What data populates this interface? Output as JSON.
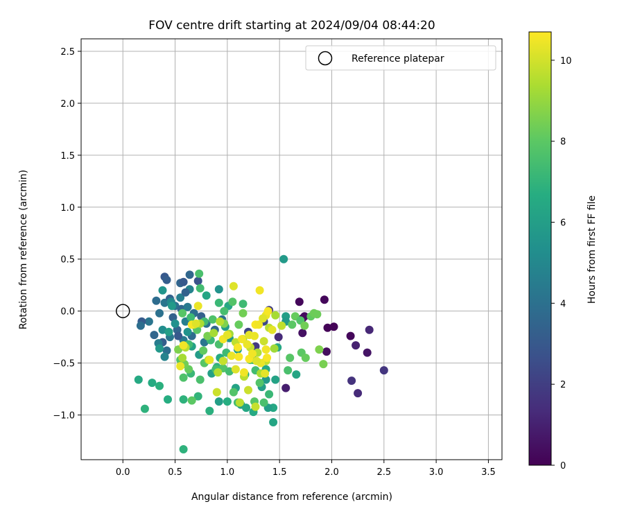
{
  "chart_data": {
    "type": "scatter",
    "title": "FOV centre drift starting at 2024/09/04 08:44:20",
    "xlabel": "Angular distance from reference (arcmin)",
    "ylabel": "Rotation from reference (arcmin)",
    "xlim": [
      -0.4,
      3.63
    ],
    "ylim": [
      -1.43,
      2.62
    ],
    "xticks": [
      "0.0",
      "0.5",
      "1.0",
      "1.5",
      "2.0",
      "2.5",
      "3.0",
      "3.5"
    ],
    "yticks": [
      "−1.0",
      "−0.5",
      "0.0",
      "0.5",
      "1.0",
      "1.5",
      "2.0",
      "2.5"
    ],
    "grid": true,
    "legend": {
      "position": "top-right",
      "entries": [
        "Reference platepar"
      ]
    },
    "reference_point": {
      "x": 0.0,
      "y": 0.0,
      "marker": "open-circle"
    },
    "colorbar": {
      "label": "Hours from first FF file",
      "range": [
        0,
        10.7
      ],
      "ticks": [
        "0",
        "2",
        "4",
        "6",
        "8",
        "10"
      ],
      "colormap": "viridis"
    },
    "series": [
      {
        "color_value": "hours",
        "points": [
          [
            1.69,
            0.09,
            0.2
          ],
          [
            1.72,
            -0.07,
            0.2
          ],
          [
            1.74,
            -0.05,
            0.3
          ],
          [
            1.72,
            -0.21,
            0.5
          ],
          [
            1.93,
            0.11,
            0.2
          ],
          [
            1.96,
            -0.16,
            0.1
          ],
          [
            2.02,
            -0.15,
            0.1
          ],
          [
            1.95,
            -0.39,
            0.4
          ],
          [
            2.18,
            -0.24,
            0.2
          ],
          [
            2.23,
            -0.33,
            1.0
          ],
          [
            2.34,
            -0.4,
            0.6
          ],
          [
            2.36,
            -0.18,
            1.2
          ],
          [
            2.19,
            -0.67,
            1.6
          ],
          [
            2.25,
            -0.79,
            1.3
          ],
          [
            2.5,
            -0.57,
            1.7
          ],
          [
            1.56,
            -0.74,
            0.9
          ],
          [
            1.49,
            -0.25,
            1.3
          ],
          [
            1.4,
            0.01,
            2.0
          ],
          [
            1.35,
            -0.1,
            2.4
          ],
          [
            1.2,
            -0.2,
            2.2
          ],
          [
            1.27,
            -0.34,
            1.8
          ],
          [
            0.4,
            0.33,
            3.0
          ],
          [
            0.42,
            0.3,
            3.2
          ],
          [
            0.55,
            0.27,
            3.5
          ],
          [
            0.58,
            0.28,
            3.0
          ],
          [
            0.64,
            0.35,
            3.6
          ],
          [
            0.72,
            0.29,
            2.8
          ],
          [
            0.32,
            0.1,
            3.8
          ],
          [
            0.4,
            0.08,
            4.2
          ],
          [
            0.45,
            0.12,
            3.4
          ],
          [
            0.5,
            0.05,
            4.0
          ],
          [
            0.56,
            0.02,
            3.6
          ],
          [
            0.62,
            0.04,
            4.4
          ],
          [
            0.68,
            -0.02,
            3.9
          ],
          [
            0.75,
            -0.05,
            3.3
          ],
          [
            0.8,
            -0.12,
            4.1
          ],
          [
            0.7,
            -0.15,
            3.7
          ],
          [
            0.6,
            -0.1,
            4.6
          ],
          [
            0.52,
            -0.18,
            3.5
          ],
          [
            0.45,
            -0.25,
            4.3
          ],
          [
            0.38,
            -0.3,
            3.2
          ],
          [
            0.34,
            -0.31,
            4.5
          ],
          [
            0.42,
            -0.38,
            3.9
          ],
          [
            0.4,
            -0.44,
            4.8
          ],
          [
            0.3,
            -0.23,
            3.6
          ],
          [
            0.25,
            -0.1,
            4.2
          ],
          [
            0.18,
            -0.1,
            3.1
          ],
          [
            0.17,
            -0.14,
            3.9
          ],
          [
            0.35,
            -0.02,
            4.0
          ],
          [
            0.48,
            -0.06,
            3.4
          ],
          [
            0.58,
            -0.28,
            4.4
          ],
          [
            0.66,
            -0.24,
            3.8
          ],
          [
            0.78,
            -0.3,
            4.2
          ],
          [
            0.88,
            -0.18,
            3.6
          ],
          [
            0.95,
            -0.08,
            4.0
          ],
          [
            0.55,
            0.13,
            4.6
          ],
          [
            0.46,
            0.09,
            5.0
          ],
          [
            0.38,
            -0.18,
            5.2
          ],
          [
            0.64,
            0.21,
            4.8
          ],
          [
            0.6,
            0.18,
            3.4
          ],
          [
            0.53,
            -0.24,
            3.0
          ],
          [
            0.38,
            0.2,
            5.6
          ],
          [
            0.47,
            0.05,
            5.8
          ],
          [
            0.5,
            -0.12,
            5.4
          ],
          [
            0.44,
            -0.2,
            6.0
          ],
          [
            0.35,
            -0.36,
            5.7
          ],
          [
            0.62,
            -0.2,
            5.5
          ],
          [
            0.66,
            -0.34,
            6.2
          ],
          [
            0.73,
            -0.42,
            5.9
          ],
          [
            0.8,
            0.15,
            6.3
          ],
          [
            0.92,
            0.21,
            5.5
          ],
          [
            1.01,
            0.05,
            6.4
          ],
          [
            0.98,
            -0.15,
            6.0
          ],
          [
            1.02,
            -0.26,
            5.6
          ],
          [
            1.1,
            -0.37,
            6.1
          ],
          [
            1.25,
            -0.47,
            6.0
          ],
          [
            1.37,
            -0.66,
            5.8
          ],
          [
            1.46,
            -0.66,
            6.2
          ],
          [
            1.44,
            -0.93,
            6.4
          ],
          [
            1.39,
            -0.93,
            6.0
          ],
          [
            1.44,
            -1.07,
            6.3
          ],
          [
            1.25,
            -0.97,
            6.5
          ],
          [
            1.13,
            -0.9,
            6.1
          ],
          [
            1.18,
            -0.93,
            6.4
          ],
          [
            1.0,
            -0.87,
            6.7
          ],
          [
            0.92,
            -0.87,
            6.0
          ],
          [
            0.15,
            -0.66,
            6.5
          ],
          [
            0.21,
            -0.94,
            6.9
          ],
          [
            0.28,
            -0.69,
            6.6
          ],
          [
            0.35,
            -0.72,
            6.8
          ],
          [
            0.43,
            -0.85,
            6.7
          ],
          [
            0.58,
            -0.85,
            6.9
          ],
          [
            0.58,
            -1.33,
            6.9
          ],
          [
            0.83,
            -0.96,
            6.8
          ],
          [
            0.72,
            -0.82,
            7.0
          ],
          [
            1.66,
            -0.61,
            6.3
          ],
          [
            1.56,
            -0.05,
            6.0
          ],
          [
            1.56,
            -0.1,
            5.8
          ],
          [
            1.54,
            0.5,
            5.8
          ],
          [
            1.48,
            -0.35,
            6.4
          ],
          [
            1.17,
            -0.61,
            6.6
          ],
          [
            1.08,
            -0.74,
            6.2
          ],
          [
            1.33,
            -0.73,
            6.0
          ],
          [
            1.37,
            -0.56,
            6.5
          ],
          [
            0.85,
            -0.6,
            6.1
          ],
          [
            0.93,
            -0.45,
            6.6
          ],
          [
            0.9,
            -0.54,
            6.9
          ],
          [
            0.73,
            0.36,
            7.6
          ],
          [
            0.74,
            0.22,
            7.4
          ],
          [
            0.92,
            0.08,
            7.2
          ],
          [
            0.97,
            0.0,
            7.5
          ],
          [
            1.05,
            0.09,
            7.8
          ],
          [
            1.15,
            0.07,
            7.3
          ],
          [
            0.86,
            -0.08,
            7.7
          ],
          [
            0.78,
            -0.1,
            7.4
          ],
          [
            0.71,
            -0.18,
            7.9
          ],
          [
            0.84,
            -0.28,
            7.2
          ],
          [
            0.92,
            -0.32,
            7.6
          ],
          [
            0.99,
            -0.4,
            7.3
          ],
          [
            0.96,
            -0.55,
            7.8
          ],
          [
            0.89,
            -0.56,
            7.5
          ],
          [
            0.78,
            -0.5,
            7.9
          ],
          [
            0.74,
            -0.66,
            7.6
          ],
          [
            0.65,
            -0.6,
            7.2
          ],
          [
            0.58,
            -0.64,
            7.7
          ],
          [
            0.55,
            -0.47,
            7.8
          ],
          [
            0.63,
            -0.32,
            7.4
          ],
          [
            0.57,
            -0.02,
            7.9
          ],
          [
            0.65,
            -0.06,
            7.3
          ],
          [
            1.22,
            -0.47,
            7.7
          ],
          [
            1.27,
            -0.57,
            7.4
          ],
          [
            1.31,
            -0.69,
            7.8
          ],
          [
            1.4,
            -0.8,
            7.2
          ],
          [
            1.35,
            -0.88,
            7.6
          ],
          [
            1.26,
            -0.87,
            7.9
          ],
          [
            1.1,
            -0.88,
            7.5
          ],
          [
            1.06,
            -0.78,
            7.8
          ],
          [
            1.02,
            -0.58,
            7.4
          ],
          [
            1.58,
            -0.57,
            7.6
          ],
          [
            1.6,
            -0.45,
            7.9
          ],
          [
            1.62,
            -0.13,
            8.0
          ],
          [
            1.65,
            -0.05,
            8.2
          ],
          [
            1.7,
            -0.09,
            7.8
          ],
          [
            1.8,
            -0.05,
            8.1
          ],
          [
            1.83,
            -0.02,
            8.3
          ],
          [
            1.74,
            -0.14,
            8.4
          ],
          [
            1.71,
            -0.4,
            8.0
          ],
          [
            1.75,
            -0.45,
            8.2
          ],
          [
            1.88,
            -0.37,
            8.6
          ],
          [
            1.92,
            -0.51,
            8.5
          ],
          [
            1.86,
            -0.03,
            8.3
          ],
          [
            0.63,
            -0.56,
            8.2
          ],
          [
            0.59,
            -0.51,
            8.4
          ],
          [
            0.66,
            -0.86,
            8.0
          ],
          [
            0.53,
            -0.37,
            8.6
          ],
          [
            0.77,
            -0.38,
            8.1
          ],
          [
            0.81,
            -0.24,
            8.5
          ],
          [
            0.97,
            -0.12,
            8.6
          ],
          [
            1.11,
            -0.13,
            8.2
          ],
          [
            1.15,
            -0.02,
            8.4
          ],
          [
            0.82,
            -0.47,
            9.5
          ],
          [
            0.87,
            -0.21,
            9.3
          ],
          [
            0.93,
            -0.1,
            9.6
          ],
          [
            1.02,
            -0.22,
            9.2
          ],
          [
            1.08,
            -0.3,
            9.7
          ],
          [
            1.15,
            -0.27,
            9.4
          ],
          [
            1.22,
            -0.35,
            9.8
          ],
          [
            1.29,
            -0.4,
            9.5
          ],
          [
            1.35,
            -0.29,
            9.9
          ],
          [
            1.4,
            -0.16,
            9.6
          ],
          [
            1.46,
            -0.04,
            9.3
          ],
          [
            1.52,
            -0.14,
            9.7
          ],
          [
            1.16,
            -0.63,
            9.6
          ],
          [
            1.2,
            -0.76,
            9.9
          ],
          [
            1.27,
            -0.92,
            9.8
          ],
          [
            1.32,
            -0.6,
            9.4
          ],
          [
            1.37,
            -0.48,
            9.7
          ],
          [
            1.45,
            -0.36,
            9.2
          ],
          [
            0.96,
            -0.48,
            9.8
          ],
          [
            0.91,
            -0.59,
            9.5
          ],
          [
            0.9,
            -0.78,
            9.9
          ],
          [
            1.12,
            -0.88,
            9.6
          ],
          [
            0.74,
            -0.12,
            9.4
          ],
          [
            0.68,
            -0.13,
            9.8
          ],
          [
            0.6,
            -0.35,
            9.5
          ],
          [
            0.57,
            -0.45,
            9.3
          ],
          [
            0.72,
            0.05,
            10.4
          ],
          [
            1.06,
            0.24,
            10.2
          ],
          [
            1.31,
            0.2,
            10.5
          ],
          [
            1.37,
            -0.04,
            10.4
          ],
          [
            1.27,
            -0.13,
            10.6
          ],
          [
            1.21,
            -0.23,
            10.3
          ],
          [
            1.14,
            -0.27,
            10.5
          ],
          [
            1.1,
            -0.35,
            10.6
          ],
          [
            1.04,
            -0.43,
            10.4
          ],
          [
            1.08,
            -0.56,
            10.2
          ],
          [
            1.16,
            -0.59,
            10.5
          ],
          [
            1.21,
            -0.46,
            10.6
          ],
          [
            1.26,
            -0.24,
            10.4
          ],
          [
            1.3,
            -0.13,
            10.5
          ],
          [
            1.34,
            -0.07,
            10.2
          ],
          [
            1.39,
            0.0,
            10.6
          ],
          [
            1.43,
            -0.18,
            10.3
          ],
          [
            1.37,
            -0.37,
            10.5
          ],
          [
            1.32,
            -0.5,
            10.4
          ],
          [
            1.38,
            -0.45,
            10.6
          ],
          [
            1.36,
            -0.6,
            10.3
          ],
          [
            0.55,
            -0.53,
            10.4
          ],
          [
            0.58,
            -0.33,
            10.5
          ],
          [
            0.66,
            -0.13,
            10.6
          ],
          [
            0.7,
            -0.12,
            10.2
          ],
          [
            0.83,
            -0.47,
            10.4
          ],
          [
            0.96,
            -0.27,
            10.5
          ],
          [
            1.0,
            -0.23,
            10.3
          ],
          [
            1.11,
            -0.44,
            10.6
          ],
          [
            1.19,
            -0.32,
            10.4
          ],
          [
            1.24,
            -0.41,
            10.5
          ],
          [
            1.28,
            -0.48,
            10.2
          ]
        ]
      }
    ]
  }
}
